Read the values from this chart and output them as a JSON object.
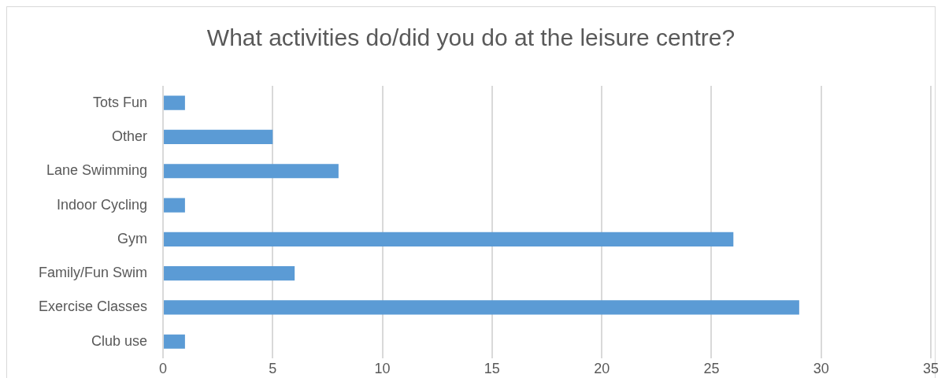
{
  "chart_data": {
    "type": "bar",
    "orientation": "horizontal",
    "title": "What activities do/did you do at the leisure centre?",
    "categories": [
      "Tots Fun",
      "Other",
      "Lane Swimming",
      "Indoor Cycling",
      "Gym",
      "Family/Fun Swim",
      "Exercise Classes",
      "Club use"
    ],
    "values": [
      1,
      5,
      8,
      1,
      26,
      6,
      29,
      1
    ],
    "color": "#5b9bd5",
    "xlim": [
      0,
      35
    ],
    "xticks": [
      0,
      5,
      10,
      15,
      20,
      25,
      30,
      35
    ],
    "grid": "x",
    "legend": false
  }
}
